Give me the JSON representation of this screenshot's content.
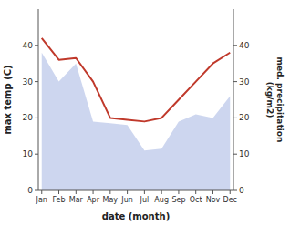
{
  "chart_data": {
    "type": "line",
    "x_label": "date (month)",
    "y_label": "max temp (C)",
    "y2_label": "med. precipitation\n(kg/m2)",
    "categories": [
      "Jan",
      "Feb",
      "Mar",
      "Apr",
      "May",
      "Jun",
      "Jul",
      "Aug",
      "Sep",
      "Oct",
      "Nov",
      "Dec"
    ],
    "series": [
      {
        "type": "area",
        "axis": "y2",
        "color": "#b8c4e8",
        "values": [
          38,
          30,
          35,
          19,
          18.5,
          18,
          11,
          11.5,
          19,
          21,
          20,
          26
        ]
      },
      {
        "type": "line",
        "color": "#c0392b",
        "values": [
          42,
          36,
          36.5,
          30,
          20,
          19.5,
          19,
          20,
          25,
          30,
          35,
          38
        ]
      }
    ],
    "ylim": [
      0,
      50
    ],
    "yticks": [
      0,
      10,
      20,
      30,
      40
    ],
    "y2lim": [
      0,
      50
    ],
    "y2ticks": [
      0,
      10,
      20,
      30,
      40
    ],
    "grid": false
  }
}
